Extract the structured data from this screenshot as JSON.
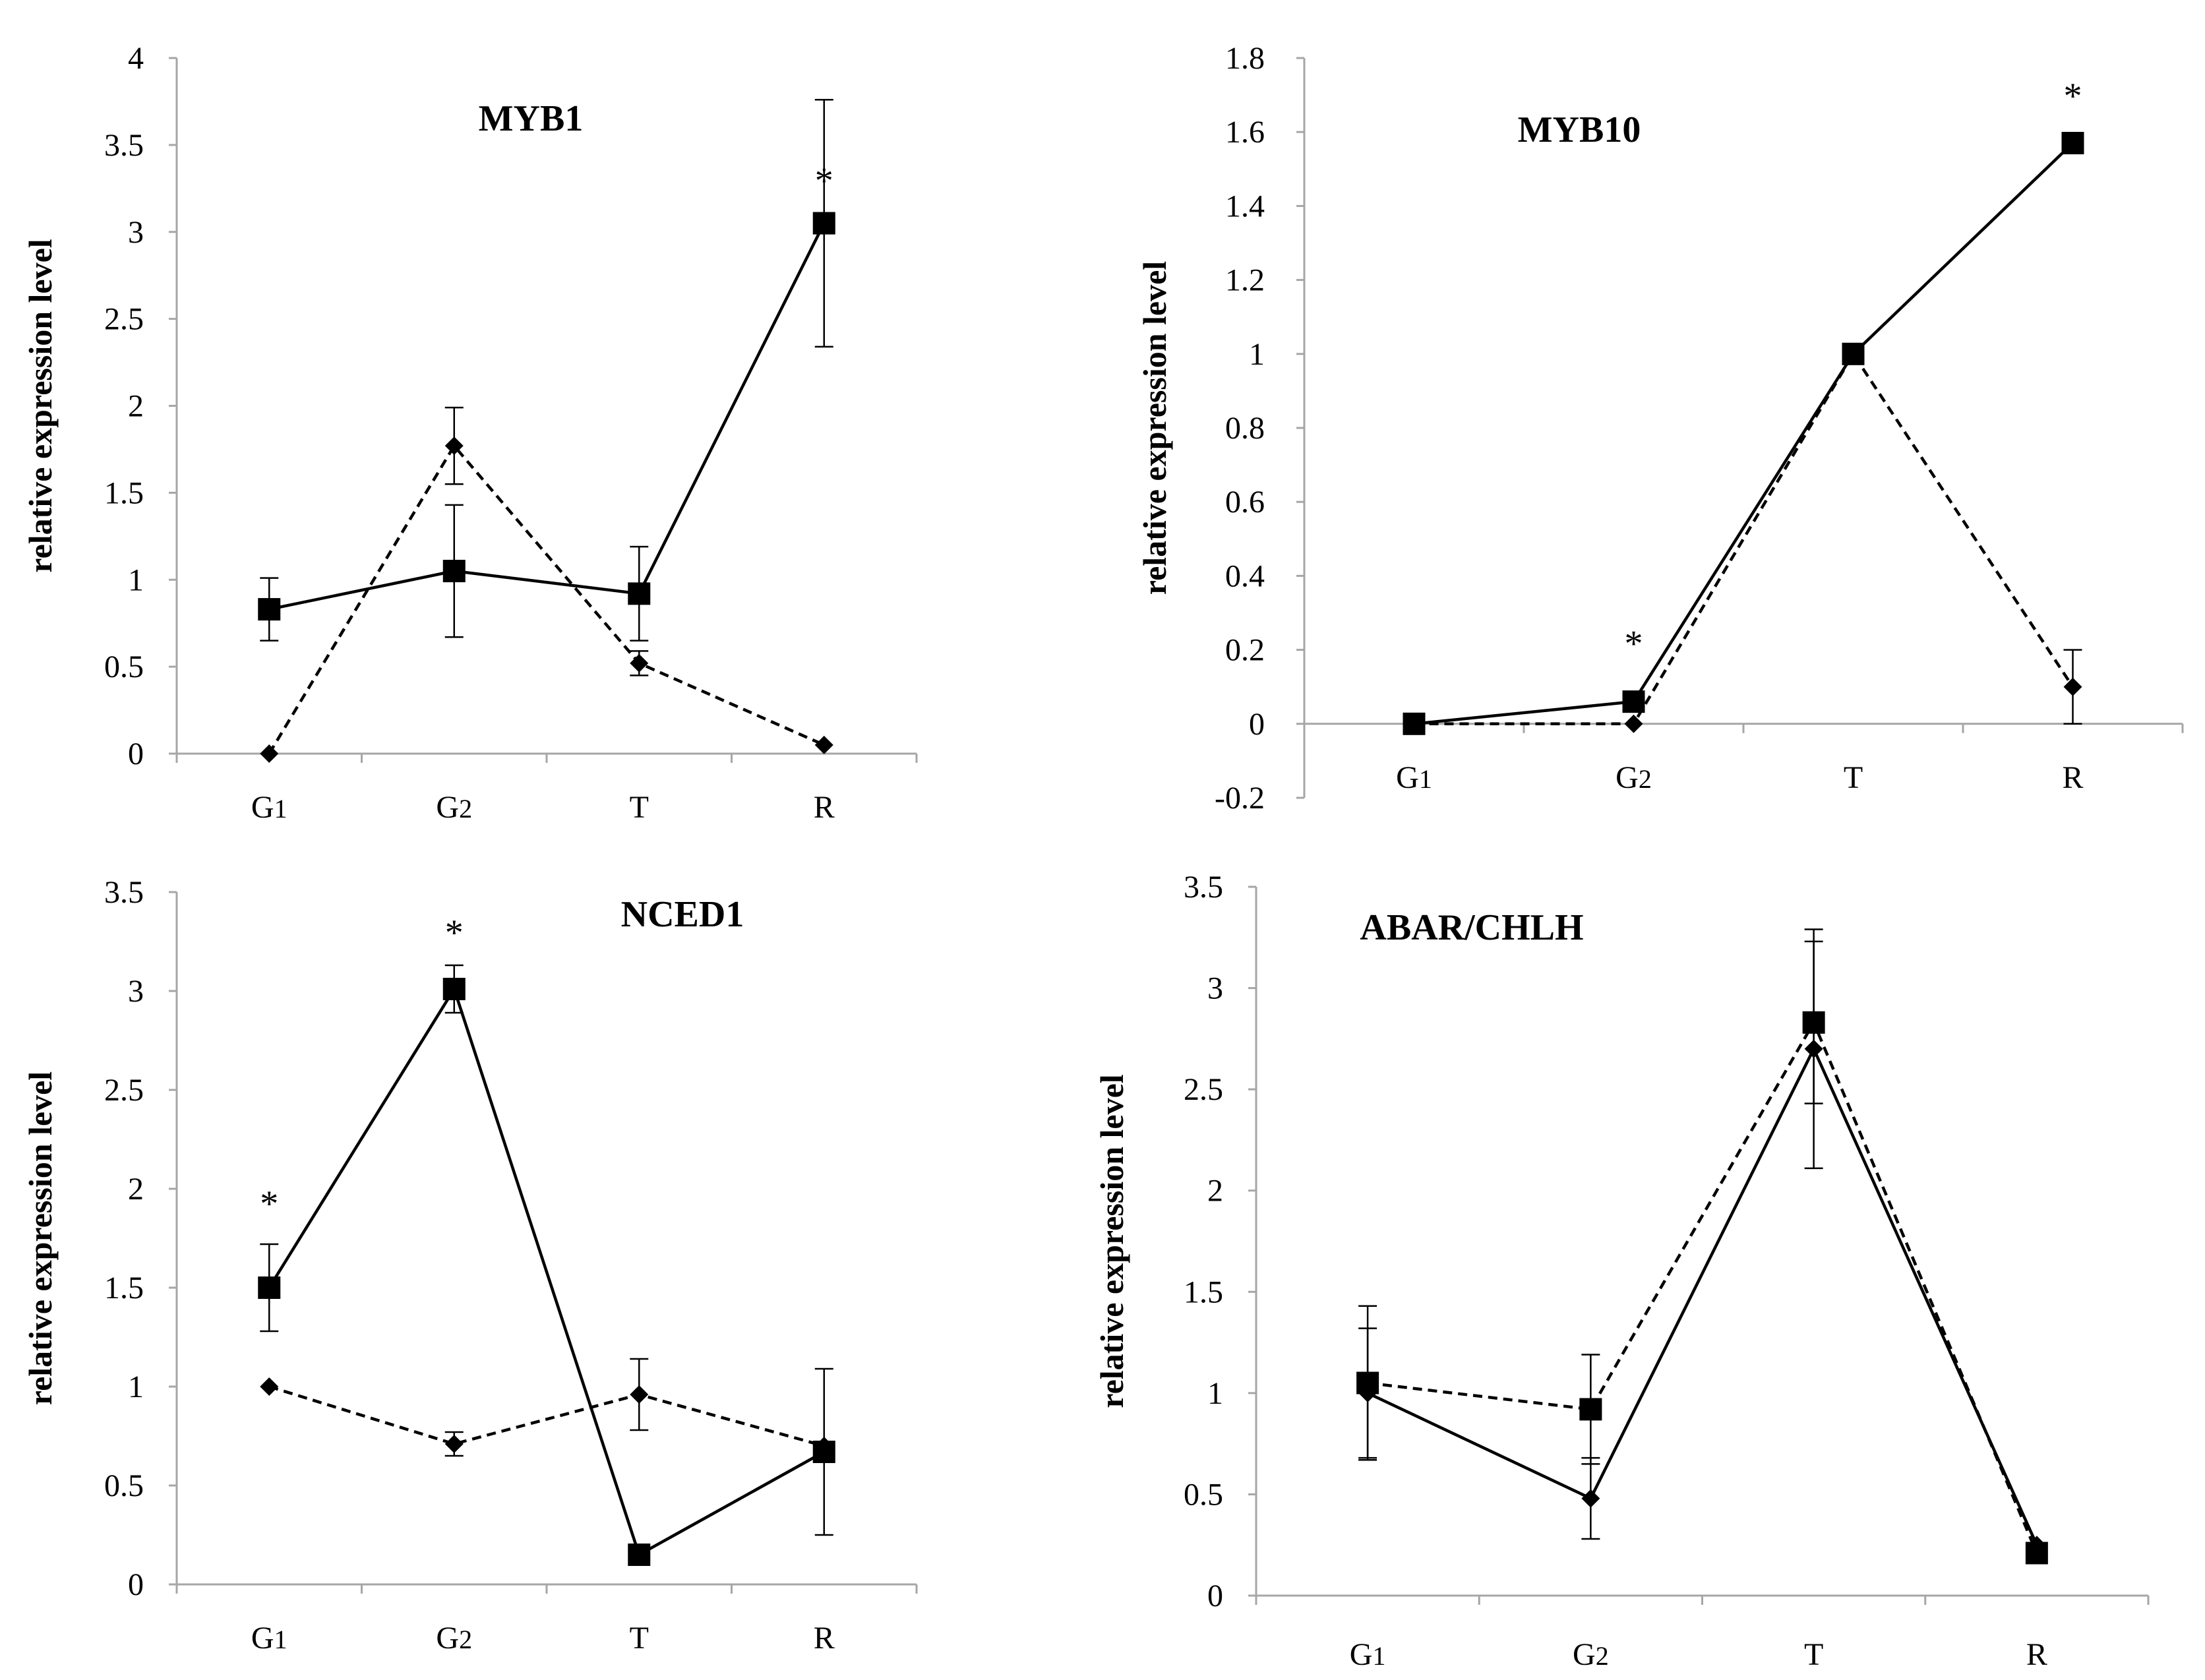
{
  "chart_data": [
    {
      "type": "line",
      "title": "MYB1",
      "ylabel": "relative expression level",
      "xlabel": "",
      "categories": [
        "G1",
        "G2",
        "T",
        "R"
      ],
      "ylim": [
        0,
        4
      ],
      "yticks": [
        0,
        0.5,
        1,
        1.5,
        2,
        2.5,
        3,
        3.5,
        4
      ],
      "ytick_labels": [
        "0",
        "0.5",
        "1",
        "1.5",
        "2",
        "2.5",
        "3",
        "3.5",
        "4"
      ],
      "series": [
        {
          "name": "solid-square",
          "style": "solid",
          "marker": "square",
          "values": [
            0.83,
            1.05,
            0.92,
            3.05
          ],
          "errors": [
            0.18,
            0.38,
            0.27,
            0.71
          ]
        },
        {
          "name": "dashed-diamond",
          "style": "dashed",
          "marker": "diamond",
          "values": [
            0.0,
            1.77,
            0.52,
            0.05
          ],
          "errors": [
            0,
            0.22,
            0.07,
            0
          ]
        }
      ],
      "annotations": [
        {
          "text": "*",
          "category": "R",
          "y": 3.3
        }
      ]
    },
    {
      "type": "line",
      "title": "MYB10",
      "ylabel": "relative expression level",
      "xlabel": "",
      "categories": [
        "G1",
        "G2",
        "T",
        "R"
      ],
      "ylim": [
        -0.2,
        1.8
      ],
      "yticks": [
        -0.2,
        0,
        0.2,
        0.4,
        0.6,
        0.8,
        1,
        1.2,
        1.4,
        1.6,
        1.8
      ],
      "ytick_labels": [
        "-0.2",
        "0",
        "0.2",
        "0.4",
        "0.6",
        "0.8",
        "1",
        "1.2",
        "1.4",
        "1.6",
        "1.8"
      ],
      "series": [
        {
          "name": "solid-square",
          "style": "solid",
          "marker": "square",
          "values": [
            0.0,
            0.06,
            1.0,
            1.57
          ],
          "errors": [
            0,
            0,
            0,
            0
          ]
        },
        {
          "name": "dashed-diamond",
          "style": "dashed",
          "marker": "diamond",
          "values": [
            0.0,
            0.0,
            1.0,
            0.1
          ],
          "errors": [
            0,
            0,
            0,
            0.1
          ]
        }
      ],
      "annotations": [
        {
          "text": "*",
          "category": "G2",
          "y": 0.22
        },
        {
          "text": "*",
          "category": "R",
          "y": 1.7
        }
      ]
    },
    {
      "type": "line",
      "title": "NCED1",
      "ylabel": "relative expression level",
      "xlabel": "",
      "categories": [
        "G1",
        "G2",
        "T",
        "R"
      ],
      "ylim": [
        0,
        3.5
      ],
      "yticks": [
        0,
        0.5,
        1,
        1.5,
        2,
        2.5,
        3,
        3.5
      ],
      "ytick_labels": [
        "0",
        "0.5",
        "1",
        "1.5",
        "2",
        "2.5",
        "3",
        "3.5"
      ],
      "series": [
        {
          "name": "solid-square",
          "style": "solid",
          "marker": "square",
          "values": [
            1.5,
            3.01,
            0.15,
            0.67
          ],
          "errors": [
            0.22,
            0.12,
            0,
            0.42
          ]
        },
        {
          "name": "dashed-diamond",
          "style": "dashed",
          "marker": "diamond",
          "values": [
            1.0,
            0.71,
            0.96,
            0.7
          ],
          "errors": [
            0,
            0.06,
            0.18,
            0
          ]
        }
      ],
      "annotations": [
        {
          "text": "*",
          "category": "G1",
          "y": 1.93
        },
        {
          "text": "*",
          "category": "G2",
          "y": 3.3
        }
      ]
    },
    {
      "type": "line",
      "title": "ABAR/CHLH",
      "ylabel": "relative expression level",
      "xlabel": "",
      "categories": [
        "G1",
        "G2",
        "T",
        "R"
      ],
      "ylim": [
        0,
        3.5
      ],
      "yticks": [
        0,
        0.5,
        1,
        1.5,
        2,
        2.5,
        3,
        3.5
      ],
      "ytick_labels": [
        "0",
        "0.5",
        "1",
        "1.5",
        "2",
        "2.5",
        "3",
        "3.5"
      ],
      "series": [
        {
          "name": "solid-diamond",
          "style": "solid",
          "marker": "diamond",
          "values": [
            1.0,
            0.48,
            2.7,
            0.25
          ],
          "errors": [
            0.32,
            0.2,
            0.59,
            0
          ]
        },
        {
          "name": "dashed-square",
          "style": "dashed",
          "marker": "square",
          "values": [
            1.05,
            0.92,
            2.83,
            0.21
          ],
          "errors": [
            0.38,
            0.27,
            0.4,
            0
          ]
        }
      ],
      "annotations": []
    }
  ]
}
